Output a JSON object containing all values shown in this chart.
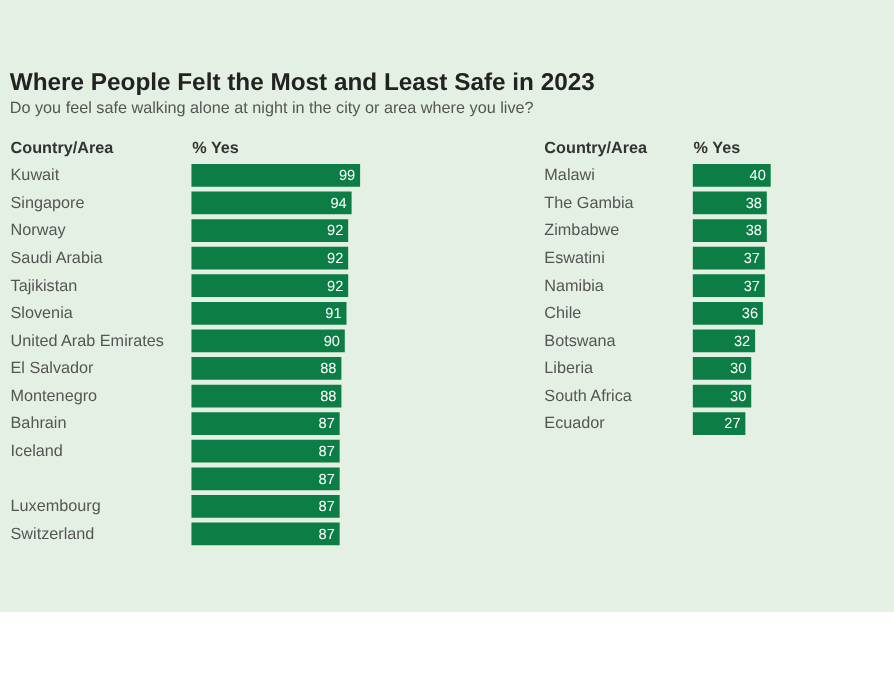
{
  "chart_data": [
    {
      "type": "bar",
      "orientation": "horizontal",
      "title": "Where People Felt the Most and Least Safe in 2023",
      "subtitle": "Do you feel safe walking alone at night in the city or area where you live?",
      "ylabel": "Country/Area",
      "xlabel": "% Yes",
      "categories": [
        "Kuwait",
        "Singapore",
        "Norway",
        "Saudi Arabia",
        "Tajikistan",
        "Slovenia",
        "United Arab Emirates",
        "El Salvador",
        "Montenegro",
        "Bahrain",
        "Iceland",
        null,
        "Luxembourg",
        "Switzerland"
      ],
      "values": [
        99,
        94,
        92,
        92,
        92,
        91,
        90,
        88,
        88,
        87,
        87,
        87,
        87,
        87
      ],
      "color": "#0b7d45",
      "xlim": [
        0,
        100
      ],
      "data_labels": true,
      "grid": false,
      "tick_labels": "y"
    },
    {
      "type": "bar",
      "orientation": "horizontal",
      "ylabel": "Country/Area",
      "xlabel": "% Yes",
      "categories": [
        "Malawi",
        "The Gambia",
        "Zimbabwe",
        "Eswatini",
        "Namibia",
        "Chile",
        "Botswana",
        "Liberia",
        "South Africa",
        "Ecuador"
      ],
      "values": [
        40,
        38,
        38,
        37,
        37,
        36,
        32,
        30,
        30,
        27
      ],
      "color": "#0b7d45",
      "xlim": [
        0,
        100
      ],
      "data_labels": true,
      "grid": false,
      "tick_labels": "y"
    }
  ]
}
